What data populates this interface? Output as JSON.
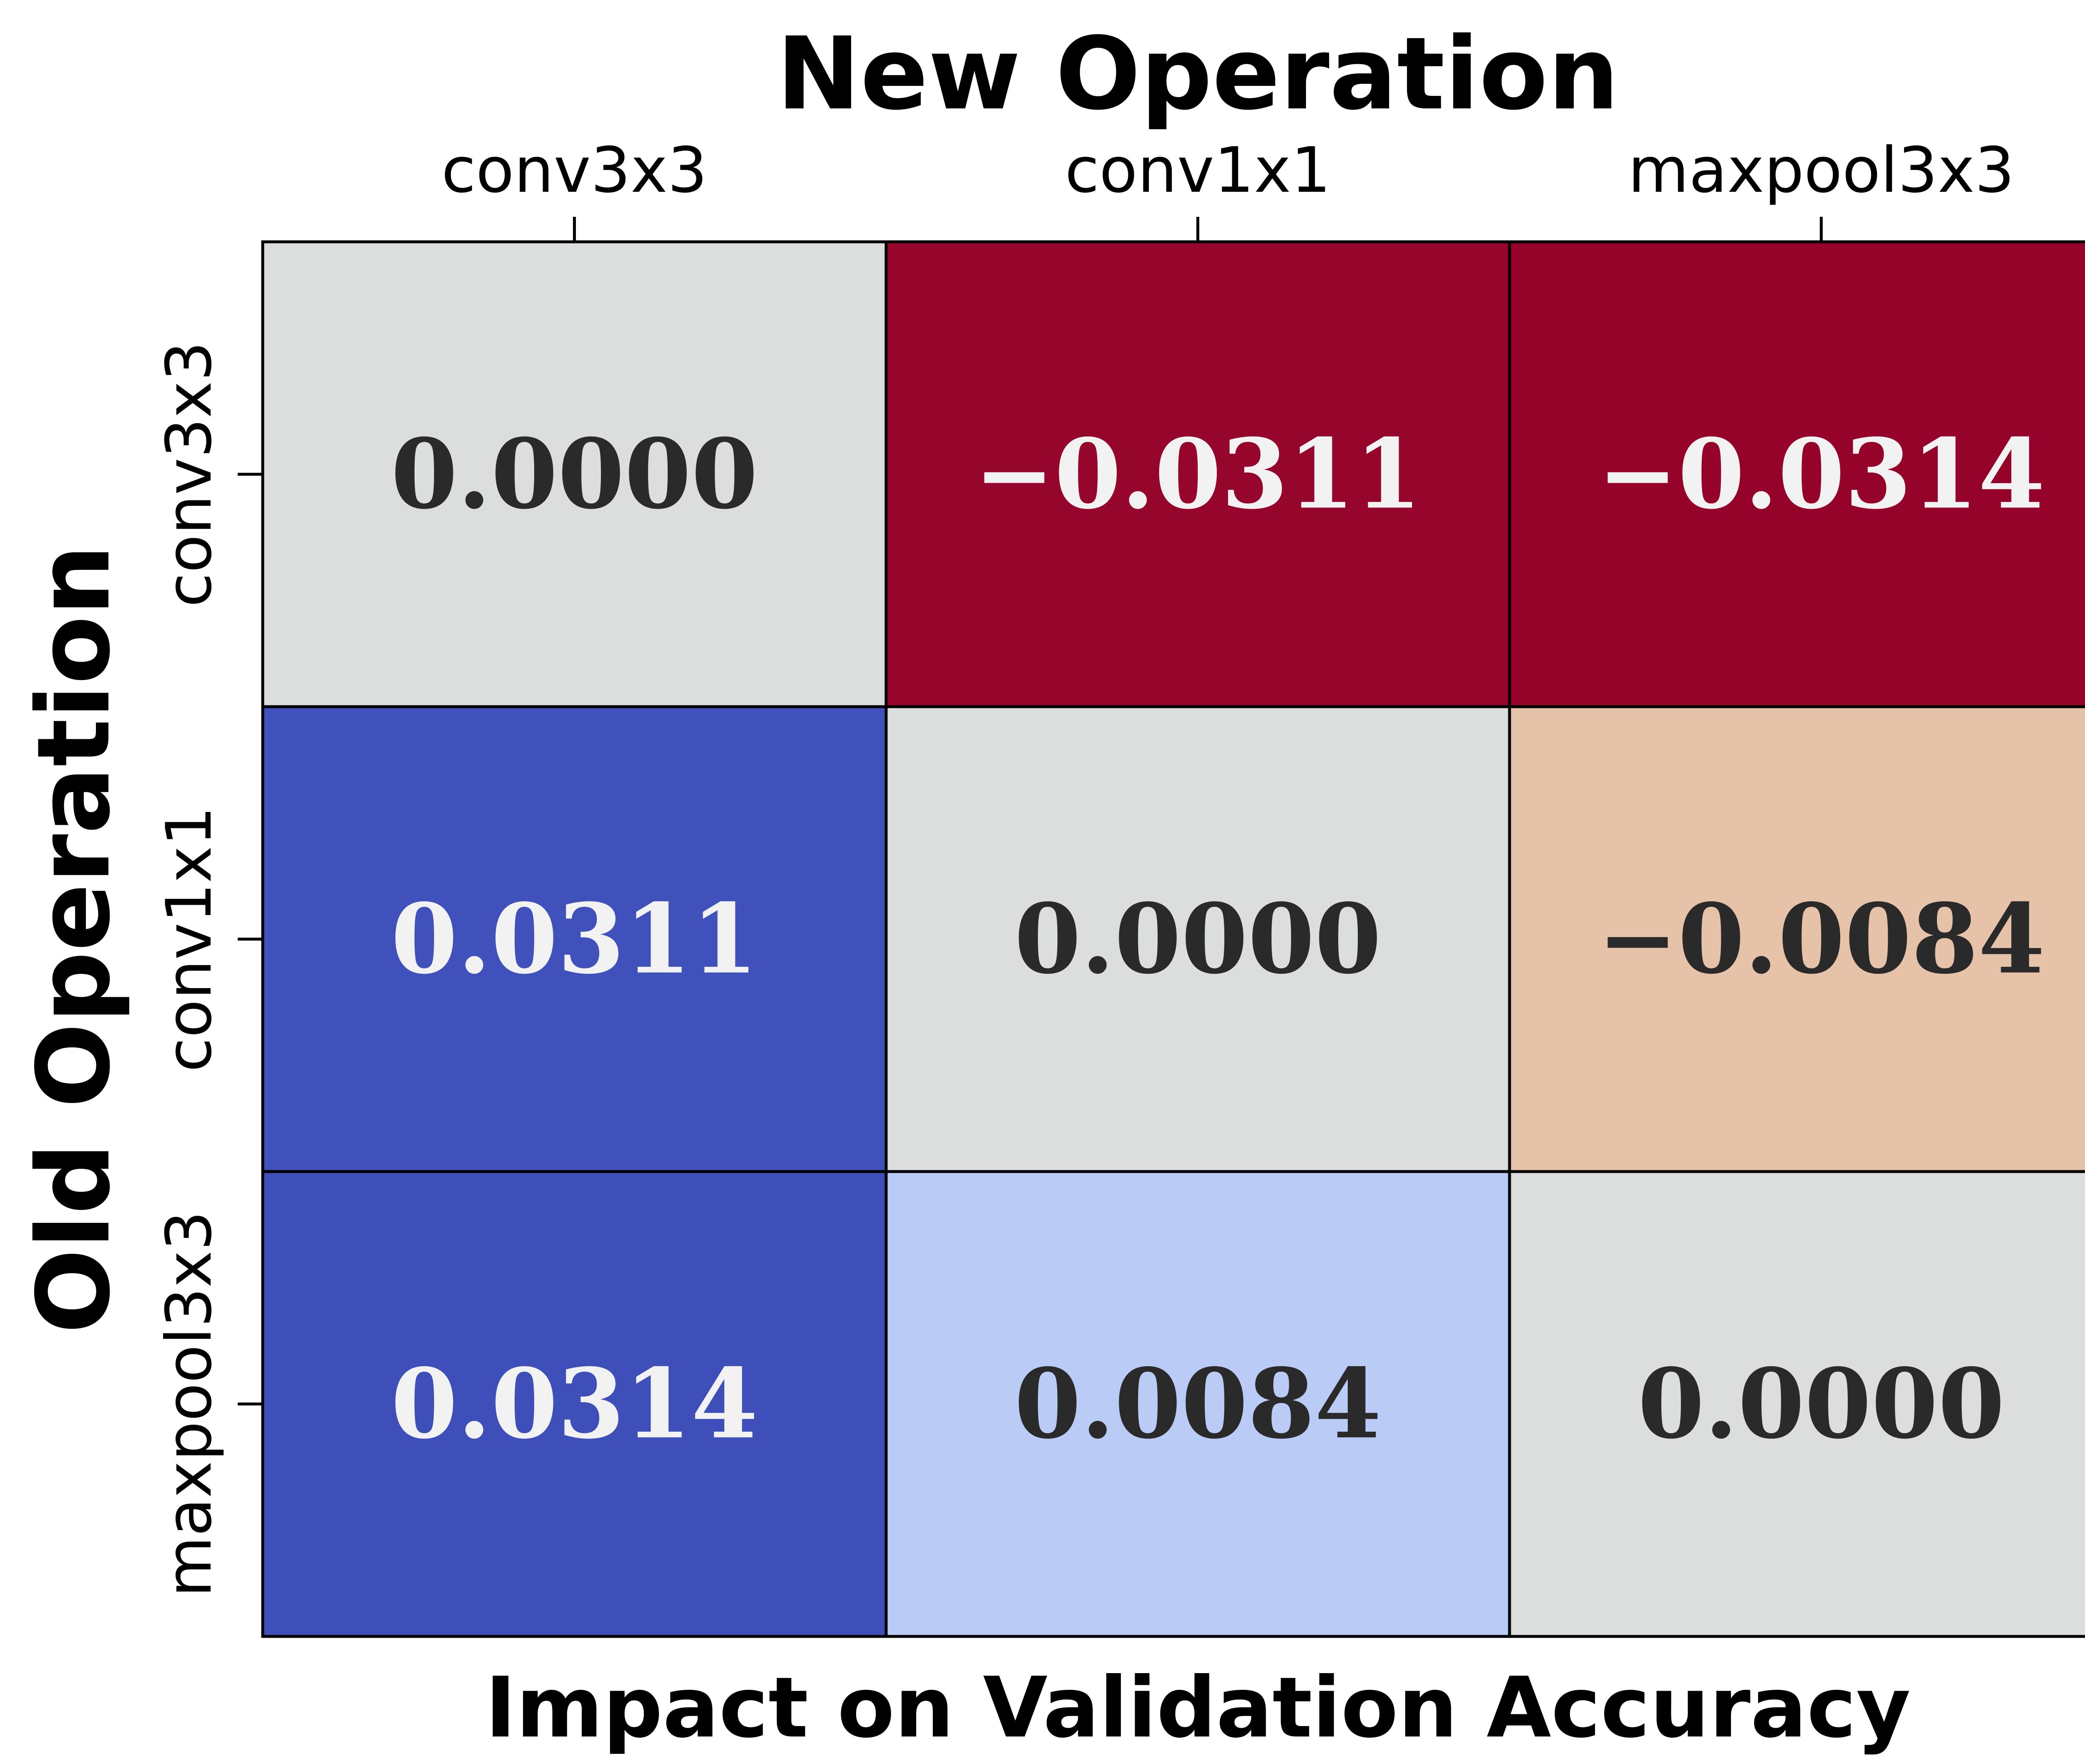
{
  "chart_data": {
    "type": "heatmap",
    "title": "New Operation",
    "xlabel": "New Operation",
    "ylabel": "Old Operation",
    "footer_label": "Impact on Validation Accuracy",
    "x_categories": [
      "conv3x3",
      "conv1x1",
      "maxpool3x3"
    ],
    "y_categories": [
      "conv3x3",
      "conv1x1",
      "maxpool3x3"
    ],
    "values": [
      [
        0.0,
        -0.0311,
        -0.0314
      ],
      [
        0.0311,
        0.0,
        -0.0084
      ],
      [
        0.0314,
        0.0084,
        0.0
      ]
    ],
    "value_labels": [
      [
        "0.0000",
        "−0.0311",
        "−0.0314"
      ],
      [
        "0.0311",
        "0.0000",
        "−0.0084"
      ],
      [
        "0.0314",
        "0.0084",
        "0.0000"
      ]
    ],
    "colormap": "coolwarm",
    "colors": {
      "neutral": "#dcdddd",
      "strong_positive": "#3f4fba",
      "strong_negative": "#95022a",
      "mild_positive": "#bacbf6",
      "mild_negative": "#e5c2a8",
      "dark_text": "#2a2a2a",
      "light_text": "#f2f2f2"
    },
    "grid": true,
    "colorbar": false,
    "legend": "none"
  }
}
